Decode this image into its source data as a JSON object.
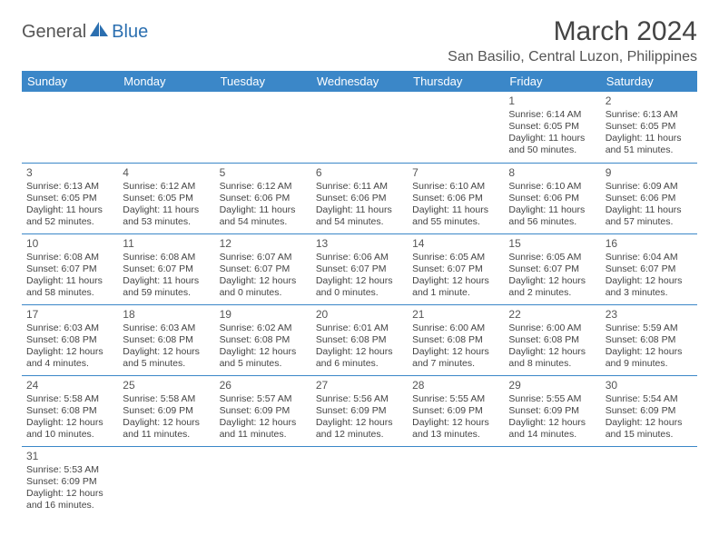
{
  "logo": {
    "text1": "General",
    "text2": "Blue"
  },
  "title": "March 2024",
  "location": "San Basilio, Central Luzon, Philippines",
  "colors": {
    "header_bg": "#3b87c8",
    "header_fg": "#ffffff",
    "border": "#3b87c8",
    "text": "#444444",
    "logo_blue": "#2b6fb0"
  },
  "weekdays": [
    "Sunday",
    "Monday",
    "Tuesday",
    "Wednesday",
    "Thursday",
    "Friday",
    "Saturday"
  ],
  "weeks": [
    [
      null,
      null,
      null,
      null,
      null,
      {
        "n": "1",
        "sr": "Sunrise: 6:14 AM",
        "ss": "Sunset: 6:05 PM",
        "dl": "Daylight: 11 hours and 50 minutes."
      },
      {
        "n": "2",
        "sr": "Sunrise: 6:13 AM",
        "ss": "Sunset: 6:05 PM",
        "dl": "Daylight: 11 hours and 51 minutes."
      }
    ],
    [
      {
        "n": "3",
        "sr": "Sunrise: 6:13 AM",
        "ss": "Sunset: 6:05 PM",
        "dl": "Daylight: 11 hours and 52 minutes."
      },
      {
        "n": "4",
        "sr": "Sunrise: 6:12 AM",
        "ss": "Sunset: 6:05 PM",
        "dl": "Daylight: 11 hours and 53 minutes."
      },
      {
        "n": "5",
        "sr": "Sunrise: 6:12 AM",
        "ss": "Sunset: 6:06 PM",
        "dl": "Daylight: 11 hours and 54 minutes."
      },
      {
        "n": "6",
        "sr": "Sunrise: 6:11 AM",
        "ss": "Sunset: 6:06 PM",
        "dl": "Daylight: 11 hours and 54 minutes."
      },
      {
        "n": "7",
        "sr": "Sunrise: 6:10 AM",
        "ss": "Sunset: 6:06 PM",
        "dl": "Daylight: 11 hours and 55 minutes."
      },
      {
        "n": "8",
        "sr": "Sunrise: 6:10 AM",
        "ss": "Sunset: 6:06 PM",
        "dl": "Daylight: 11 hours and 56 minutes."
      },
      {
        "n": "9",
        "sr": "Sunrise: 6:09 AM",
        "ss": "Sunset: 6:06 PM",
        "dl": "Daylight: 11 hours and 57 minutes."
      }
    ],
    [
      {
        "n": "10",
        "sr": "Sunrise: 6:08 AM",
        "ss": "Sunset: 6:07 PM",
        "dl": "Daylight: 11 hours and 58 minutes."
      },
      {
        "n": "11",
        "sr": "Sunrise: 6:08 AM",
        "ss": "Sunset: 6:07 PM",
        "dl": "Daylight: 11 hours and 59 minutes."
      },
      {
        "n": "12",
        "sr": "Sunrise: 6:07 AM",
        "ss": "Sunset: 6:07 PM",
        "dl": "Daylight: 12 hours and 0 minutes."
      },
      {
        "n": "13",
        "sr": "Sunrise: 6:06 AM",
        "ss": "Sunset: 6:07 PM",
        "dl": "Daylight: 12 hours and 0 minutes."
      },
      {
        "n": "14",
        "sr": "Sunrise: 6:05 AM",
        "ss": "Sunset: 6:07 PM",
        "dl": "Daylight: 12 hours and 1 minute."
      },
      {
        "n": "15",
        "sr": "Sunrise: 6:05 AM",
        "ss": "Sunset: 6:07 PM",
        "dl": "Daylight: 12 hours and 2 minutes."
      },
      {
        "n": "16",
        "sr": "Sunrise: 6:04 AM",
        "ss": "Sunset: 6:07 PM",
        "dl": "Daylight: 12 hours and 3 minutes."
      }
    ],
    [
      {
        "n": "17",
        "sr": "Sunrise: 6:03 AM",
        "ss": "Sunset: 6:08 PM",
        "dl": "Daylight: 12 hours and 4 minutes."
      },
      {
        "n": "18",
        "sr": "Sunrise: 6:03 AM",
        "ss": "Sunset: 6:08 PM",
        "dl": "Daylight: 12 hours and 5 minutes."
      },
      {
        "n": "19",
        "sr": "Sunrise: 6:02 AM",
        "ss": "Sunset: 6:08 PM",
        "dl": "Daylight: 12 hours and 5 minutes."
      },
      {
        "n": "20",
        "sr": "Sunrise: 6:01 AM",
        "ss": "Sunset: 6:08 PM",
        "dl": "Daylight: 12 hours and 6 minutes."
      },
      {
        "n": "21",
        "sr": "Sunrise: 6:00 AM",
        "ss": "Sunset: 6:08 PM",
        "dl": "Daylight: 12 hours and 7 minutes."
      },
      {
        "n": "22",
        "sr": "Sunrise: 6:00 AM",
        "ss": "Sunset: 6:08 PM",
        "dl": "Daylight: 12 hours and 8 minutes."
      },
      {
        "n": "23",
        "sr": "Sunrise: 5:59 AM",
        "ss": "Sunset: 6:08 PM",
        "dl": "Daylight: 12 hours and 9 minutes."
      }
    ],
    [
      {
        "n": "24",
        "sr": "Sunrise: 5:58 AM",
        "ss": "Sunset: 6:08 PM",
        "dl": "Daylight: 12 hours and 10 minutes."
      },
      {
        "n": "25",
        "sr": "Sunrise: 5:58 AM",
        "ss": "Sunset: 6:09 PM",
        "dl": "Daylight: 12 hours and 11 minutes."
      },
      {
        "n": "26",
        "sr": "Sunrise: 5:57 AM",
        "ss": "Sunset: 6:09 PM",
        "dl": "Daylight: 12 hours and 11 minutes."
      },
      {
        "n": "27",
        "sr": "Sunrise: 5:56 AM",
        "ss": "Sunset: 6:09 PM",
        "dl": "Daylight: 12 hours and 12 minutes."
      },
      {
        "n": "28",
        "sr": "Sunrise: 5:55 AM",
        "ss": "Sunset: 6:09 PM",
        "dl": "Daylight: 12 hours and 13 minutes."
      },
      {
        "n": "29",
        "sr": "Sunrise: 5:55 AM",
        "ss": "Sunset: 6:09 PM",
        "dl": "Daylight: 12 hours and 14 minutes."
      },
      {
        "n": "30",
        "sr": "Sunrise: 5:54 AM",
        "ss": "Sunset: 6:09 PM",
        "dl": "Daylight: 12 hours and 15 minutes."
      }
    ],
    [
      {
        "n": "31",
        "sr": "Sunrise: 5:53 AM",
        "ss": "Sunset: 6:09 PM",
        "dl": "Daylight: 12 hours and 16 minutes."
      },
      null,
      null,
      null,
      null,
      null,
      null
    ]
  ]
}
